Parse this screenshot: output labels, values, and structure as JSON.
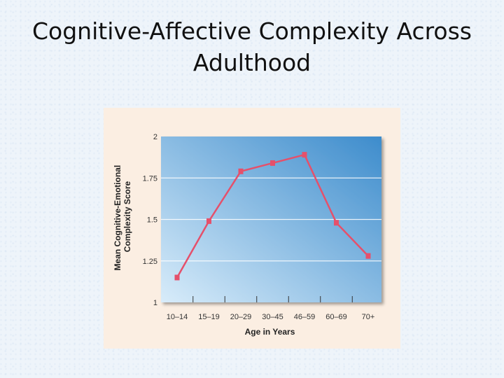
{
  "slide": {
    "title_line1": "Cognitive-Affective Complexity Across",
    "title_line2": "Adulthood"
  },
  "colors": {
    "series": "#e5506b",
    "panel_background": "#fbeee2",
    "plot_gradient_light": "#d8ecfa",
    "plot_gradient_dark": "#3d8ccc"
  },
  "chart_data": {
    "type": "line",
    "title": "",
    "xlabel": "Age in Years",
    "ylabel_line1": "Mean Cognitive-Emotional",
    "ylabel_line2": "Complexity Score",
    "categories": [
      "10–14",
      "15–19",
      "20–29",
      "30–45",
      "46–59",
      "60–69",
      "70+"
    ],
    "series": [
      {
        "values": [
          1.15,
          1.49,
          1.79,
          1.84,
          1.89,
          1.48,
          1.28
        ]
      }
    ],
    "ylim": [
      1,
      2
    ],
    "yticks": [
      "1",
      "1.25",
      "1.5",
      "1.75",
      "2"
    ],
    "grid": true,
    "legend": "none"
  }
}
